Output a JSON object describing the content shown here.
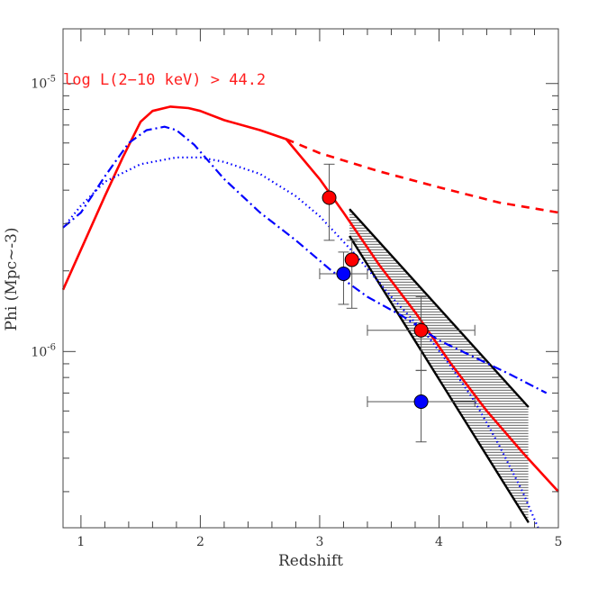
{
  "chart_data": {
    "type": "line",
    "xlabel": "Redshift",
    "ylabel": "Phi (Mpc~-3)",
    "xlim": [
      0.85,
      5.0
    ],
    "ylim": [
      2.2e-07,
      1.6e-05
    ],
    "yscale": "log",
    "x_ticks": [
      1,
      2,
      3,
      4,
      5
    ],
    "y_tick_labels": [
      {
        "value": 1e-06,
        "base": "10",
        "exp": "-6"
      },
      {
        "value": 1e-05,
        "base": "10",
        "exp": "-5"
      }
    ],
    "annotation": "log L(2−10 keV) > 44.2",
    "colors": {
      "red": "#ff0000",
      "blue": "#0000ff",
      "black": "#000000",
      "grey": "#555555"
    },
    "series": [
      {
        "style": "red-solid",
        "x": [
          0.85,
          1.0,
          1.2,
          1.35,
          1.5,
          1.6,
          1.75,
          1.9,
          2.0,
          2.2,
          2.5,
          2.72,
          3.0,
          3.2,
          3.5,
          3.8,
          4.1,
          4.4,
          4.7,
          5.0
        ],
        "y": [
          1.7e-06,
          2.4e-06,
          3.8e-06,
          5.3e-06,
          7.2e-06,
          7.9e-06,
          8.2e-06,
          8.1e-06,
          7.9e-06,
          7.3e-06,
          6.7e-06,
          6.2e-06,
          4.4e-06,
          3.3e-06,
          2.1e-06,
          1.4e-06,
          9e-07,
          6e-07,
          4.2e-07,
          3e-07
        ]
      },
      {
        "style": "red-dashed",
        "x": [
          2.72,
          3.0,
          3.5,
          4.0,
          4.5,
          5.0
        ],
        "y": [
          6.2e-06,
          5.5e-06,
          4.7e-06,
          4.1e-06,
          3.6e-06,
          3.3e-06
        ]
      },
      {
        "style": "blue-dashdot",
        "x": [
          0.85,
          1.0,
          1.2,
          1.4,
          1.55,
          1.7,
          1.8,
          1.95,
          2.2,
          2.5,
          2.8,
          3.1,
          3.4,
          3.7,
          4.0,
          4.3,
          4.6,
          4.9
        ],
        "y": [
          2.9e-06,
          3.3e-06,
          4.5e-06,
          6e-06,
          6.7e-06,
          6.9e-06,
          6.7e-06,
          5.9e-06,
          4.4e-06,
          3.3e-06,
          2.6e-06,
          2e-06,
          1.6e-06,
          1.35e-06,
          1.1e-06,
          9.5e-07,
          8.2e-07,
          7e-07
        ]
      },
      {
        "style": "blue-dotted",
        "x": [
          0.85,
          1.0,
          1.2,
          1.5,
          1.8,
          2.0,
          2.2,
          2.5,
          2.8,
          3.0,
          3.3,
          3.6,
          3.9,
          4.1,
          4.3,
          4.5,
          4.7,
          4.83
        ],
        "y": [
          2.9e-06,
          3.5e-06,
          4.3e-06,
          5e-06,
          5.3e-06,
          5.3e-06,
          5.1e-06,
          4.6e-06,
          3.8e-06,
          3.2e-06,
          2.3e-06,
          1.6e-06,
          1.15e-06,
          8.8e-07,
          6.5e-07,
          4.5e-07,
          3e-07,
          2.2e-07
        ]
      }
    ],
    "band": {
      "upper": {
        "x": [
          3.25,
          4.75
        ],
        "y": [
          3.4e-06,
          6.2e-07
        ]
      },
      "lower": {
        "x": [
          3.25,
          4.75
        ],
        "y": [
          2.7e-06,
          2.3e-07
        ]
      },
      "hatch_x_max": 4.75
    },
    "points": [
      {
        "color": "red",
        "x": 3.08,
        "y": 3.75e-06,
        "xerr": [
          0.0,
          0.0
        ],
        "yerr": [
          2.6e-06,
          5e-06
        ]
      },
      {
        "color": "red",
        "x": 3.27,
        "y": 2.2e-06,
        "xerr": [
          0.0,
          0.0
        ],
        "yerr": [
          1.45e-06,
          2.6e-06
        ]
      },
      {
        "color": "blue",
        "x": 3.2,
        "y": 1.95e-06,
        "xerr": [
          3.0,
          3.4
        ],
        "yerr": [
          1.5e-06,
          2.35e-06
        ]
      },
      {
        "color": "red",
        "x": 3.85,
        "y": 1.2e-06,
        "xerr": [
          3.4,
          4.3
        ],
        "yerr": [
          8.5e-07,
          1.6e-06
        ]
      },
      {
        "color": "blue",
        "x": 3.85,
        "y": 6.5e-07,
        "xerr": [
          3.4,
          4.3
        ],
        "yerr": [
          4.6e-07,
          8.5e-07
        ]
      }
    ]
  }
}
